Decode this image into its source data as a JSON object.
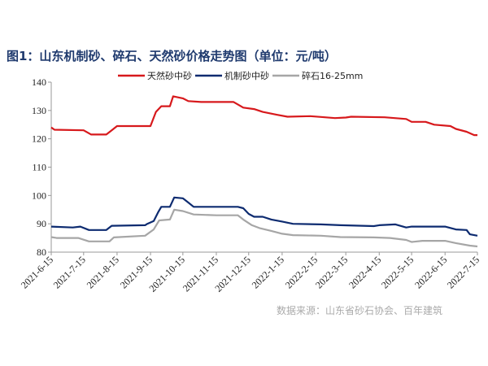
{
  "chart_data": {
    "type": "line",
    "title": "图1：山东机制砂、碎石、天然砂价格走势图（单位：元/吨）",
    "source": "数据来源：山东省砂石协会、百年建筑",
    "xlabel": "",
    "ylabel": "",
    "ylim": [
      80,
      140
    ],
    "yticks": [
      "80",
      "90",
      "100",
      "110",
      "120",
      "130",
      "140"
    ],
    "xlim": [
      "2021-06-15",
      "2022-07-15"
    ],
    "xticks": [
      "2021-6-15",
      "2021-7-15",
      "2021-8-15",
      "2021-9-15",
      "2021-10-15",
      "2021-11-15",
      "2021-12-15",
      "2022-1-15",
      "2022-2-15",
      "2022-3-15",
      "2022-4-15",
      "2022-5-15",
      "2022-6-15",
      "2022-7-15"
    ],
    "legend": "top",
    "grid": false,
    "series": [
      {
        "name": "天然砂中砂",
        "color": "#d7191c",
        "points": [
          [
            "2021-06-15",
            124
          ],
          [
            "2021-06-18",
            123.2
          ],
          [
            "2021-07-15",
            123
          ],
          [
            "2021-07-22",
            121.5
          ],
          [
            "2021-08-05",
            121.5
          ],
          [
            "2021-08-10",
            123
          ],
          [
            "2021-08-15",
            124.5
          ],
          [
            "2021-09-15",
            124.5
          ],
          [
            "2021-09-20",
            129.5
          ],
          [
            "2021-09-25",
            131.5
          ],
          [
            "2021-10-03",
            131.5
          ],
          [
            "2021-10-06",
            135
          ],
          [
            "2021-10-15",
            134.3
          ],
          [
            "2021-10-20",
            133.3
          ],
          [
            "2021-11-01",
            133
          ],
          [
            "2021-12-01",
            133
          ],
          [
            "2021-12-10",
            131
          ],
          [
            "2021-12-20",
            130.5
          ],
          [
            "2021-12-28",
            129.5
          ],
          [
            "2022-01-10",
            128.5
          ],
          [
            "2022-01-20",
            127.8
          ],
          [
            "2022-02-10",
            128
          ],
          [
            "2022-02-20",
            127.7
          ],
          [
            "2022-03-05",
            127.3
          ],
          [
            "2022-03-15",
            127.5
          ],
          [
            "2022-03-20",
            127.8
          ],
          [
            "2022-04-20",
            127.6
          ],
          [
            "2022-05-10",
            127
          ],
          [
            "2022-05-15",
            126
          ],
          [
            "2022-05-28",
            126
          ],
          [
            "2022-06-05",
            125
          ],
          [
            "2022-06-20",
            124.5
          ],
          [
            "2022-06-25",
            123.5
          ],
          [
            "2022-07-05",
            122.5
          ],
          [
            "2022-07-12",
            121.3
          ],
          [
            "2022-07-15",
            121.3
          ]
        ]
      },
      {
        "name": "机制砂中砂",
        "color": "#0d2b70",
        "points": [
          [
            "2021-06-15",
            89
          ],
          [
            "2021-07-05",
            88.7
          ],
          [
            "2021-07-12",
            89
          ],
          [
            "2021-07-20",
            87.8
          ],
          [
            "2021-08-05",
            87.8
          ],
          [
            "2021-08-10",
            89.3
          ],
          [
            "2021-09-10",
            89.5
          ],
          [
            "2021-09-12",
            90
          ],
          [
            "2021-09-18",
            91
          ],
          [
            "2021-09-22",
            94
          ],
          [
            "2021-09-25",
            96
          ],
          [
            "2021-10-03",
            96
          ],
          [
            "2021-10-07",
            99.3
          ],
          [
            "2021-10-15",
            99
          ],
          [
            "2021-10-20",
            97.5
          ],
          [
            "2021-10-25",
            96
          ],
          [
            "2021-12-05",
            96
          ],
          [
            "2021-12-10",
            95.5
          ],
          [
            "2021-12-15",
            93.5
          ],
          [
            "2021-12-20",
            92.5
          ],
          [
            "2021-12-28",
            92.5
          ],
          [
            "2022-01-05",
            91.5
          ],
          [
            "2022-01-15",
            90.8
          ],
          [
            "2022-01-25",
            90
          ],
          [
            "2022-02-20",
            89.8
          ],
          [
            "2022-03-10",
            89.5
          ],
          [
            "2022-04-10",
            89.2
          ],
          [
            "2022-04-15",
            89.5
          ],
          [
            "2022-04-30",
            89.8
          ],
          [
            "2022-05-10",
            88.7
          ],
          [
            "2022-05-15",
            89
          ],
          [
            "2022-06-15",
            89
          ],
          [
            "2022-06-25",
            88
          ],
          [
            "2022-07-05",
            87.8
          ],
          [
            "2022-07-08",
            86.3
          ],
          [
            "2022-07-15",
            85.8
          ]
        ]
      },
      {
        "name": "碎石16-25mm",
        "color": "#a6a6a6",
        "points": [
          [
            "2021-06-15",
            85.3
          ],
          [
            "2021-06-20",
            85
          ],
          [
            "2021-07-10",
            85
          ],
          [
            "2021-07-20",
            83.8
          ],
          [
            "2021-08-08",
            83.8
          ],
          [
            "2021-08-12",
            85.2
          ],
          [
            "2021-09-10",
            85.8
          ],
          [
            "2021-09-18",
            88
          ],
          [
            "2021-09-23",
            91.2
          ],
          [
            "2021-10-03",
            91.5
          ],
          [
            "2021-10-07",
            95
          ],
          [
            "2021-10-15",
            94.5
          ],
          [
            "2021-10-25",
            93.3
          ],
          [
            "2021-11-15",
            93
          ],
          [
            "2021-12-05",
            93
          ],
          [
            "2021-12-10",
            91.5
          ],
          [
            "2021-12-18",
            89.5
          ],
          [
            "2021-12-25",
            88.5
          ],
          [
            "2022-01-05",
            87.5
          ],
          [
            "2022-01-15",
            86.5
          ],
          [
            "2022-01-25",
            86
          ],
          [
            "2022-02-20",
            85.8
          ],
          [
            "2022-03-10",
            85.3
          ],
          [
            "2022-04-10",
            85.2
          ],
          [
            "2022-04-25",
            85
          ],
          [
            "2022-05-10",
            84.3
          ],
          [
            "2022-05-15",
            83.6
          ],
          [
            "2022-05-25",
            84
          ],
          [
            "2022-06-15",
            84
          ],
          [
            "2022-06-25",
            83.2
          ],
          [
            "2022-07-08",
            82.3
          ],
          [
            "2022-07-15",
            82
          ]
        ]
      }
    ]
  }
}
